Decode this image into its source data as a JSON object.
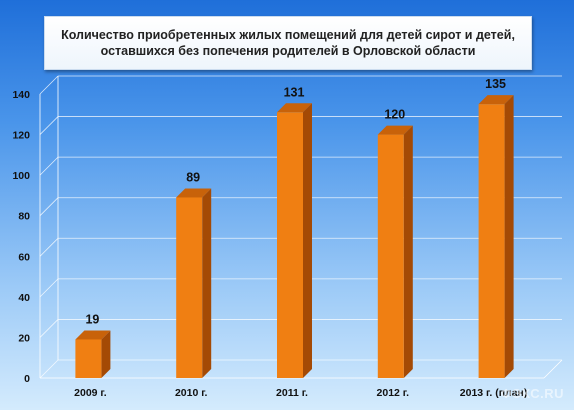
{
  "title": "Количество приобретенных жилых помещений для детей сирот и детей,\nоставшихся без попечения родителей в Орловской области",
  "watermark": "ФЭКС.RU",
  "colors": {
    "bar_front": "#f07f12",
    "bar_side": "#a44a05",
    "bar_top": "#c8620a",
    "grid": "#ffffff"
  },
  "chart_data": {
    "type": "bar",
    "title": "Количество приобретенных жилых помещений для детей сирот и детей, оставшихся без попечения родителей в Орловской области",
    "categories": [
      "2009 г.",
      "2010 г.",
      "2011 г.",
      "2012 г.",
      "2013 г. (план)"
    ],
    "values": [
      19,
      89,
      131,
      120,
      135
    ],
    "data_labels": [
      "19",
      "89",
      "131",
      "120",
      "135"
    ],
    "ylim": [
      0,
      140
    ],
    "yticks": [
      0,
      20,
      40,
      60,
      80,
      100,
      120,
      140
    ],
    "xlabel": "",
    "ylabel": "",
    "grid": true,
    "legend": "none",
    "style": "3d-column"
  }
}
